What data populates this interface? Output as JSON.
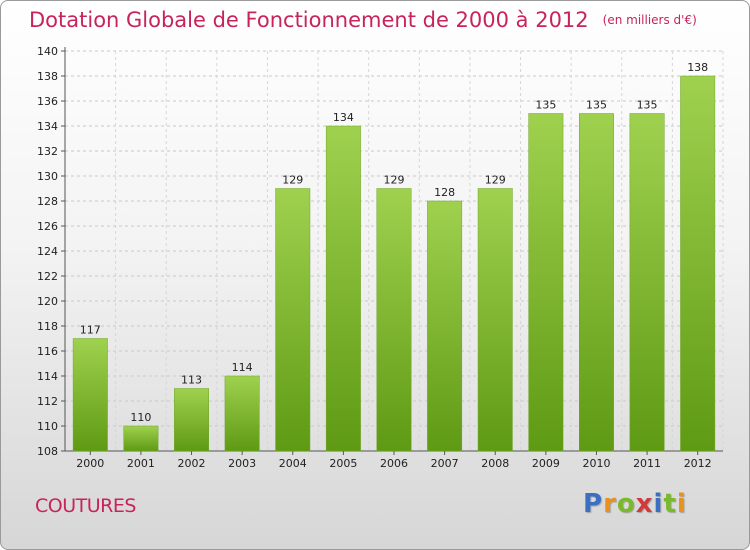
{
  "header": {
    "title": "Dotation Globale de Fonctionnement de 2000 à 2012",
    "unit": "(en milliers d'€)"
  },
  "footer": {
    "town": "COUTURES",
    "logo_letters": [
      "P",
      "r",
      "o",
      "x",
      "i",
      "t",
      "i"
    ],
    "logo_colors": [
      "#3b6fc4",
      "#e8911e",
      "#7ab82c",
      "#d23a3a",
      "#3b6fc4",
      "#7ab82c",
      "#e8911e"
    ]
  },
  "chart_data": {
    "type": "bar",
    "title": "Dotation Globale de Fonctionnement de 2000 à 2012",
    "xlabel": "",
    "ylabel": "",
    "categories": [
      "2000",
      "2001",
      "2002",
      "2003",
      "2004",
      "2005",
      "2006",
      "2007",
      "2008",
      "2009",
      "2010",
      "2011",
      "2012"
    ],
    "values": [
      117,
      110,
      113,
      114,
      129,
      134,
      129,
      128,
      129,
      135,
      135,
      135,
      138
    ],
    "ylim": [
      108,
      140
    ],
    "yticks": [
      108,
      110,
      112,
      114,
      116,
      118,
      120,
      122,
      124,
      126,
      128,
      130,
      132,
      134,
      136,
      138,
      140
    ],
    "grid": true,
    "bar_color_top": "#9fd14f",
    "bar_color_bottom": "#5f9a14"
  }
}
